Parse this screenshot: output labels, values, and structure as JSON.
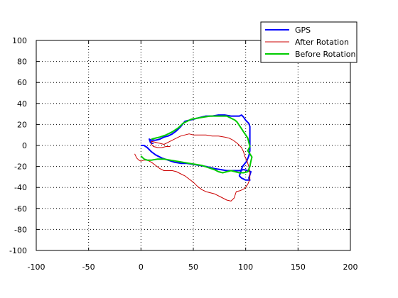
{
  "chart_data": {
    "type": "line",
    "title": "",
    "xlabel": "",
    "ylabel": "",
    "xlim": [
      -100,
      200
    ],
    "ylim": [
      -100,
      100
    ],
    "xticks": [
      -100,
      -50,
      0,
      50,
      100,
      150,
      200
    ],
    "yticks": [
      -100,
      -80,
      -60,
      -40,
      -20,
      0,
      20,
      40,
      60,
      80,
      100
    ],
    "grid": true,
    "legend_position": "top-right",
    "series": [
      {
        "name": "GPS",
        "color": "#0000ff",
        "width": 2,
        "points": [
          [
            0,
            0
          ],
          [
            3,
            0
          ],
          [
            6,
            -2
          ],
          [
            10,
            -6
          ],
          [
            14,
            -9
          ],
          [
            20,
            -12
          ],
          [
            26,
            -14
          ],
          [
            32,
            -16
          ],
          [
            38,
            -17
          ],
          [
            44,
            -17
          ],
          [
            50,
            -18
          ],
          [
            56,
            -19
          ],
          [
            62,
            -20
          ],
          [
            70,
            -22
          ],
          [
            76,
            -23
          ],
          [
            82,
            -24
          ],
          [
            88,
            -24
          ],
          [
            94,
            -24
          ],
          [
            98,
            -23
          ],
          [
            102,
            -24
          ],
          [
            105,
            -25
          ],
          [
            104,
            -28
          ],
          [
            103,
            -31
          ],
          [
            104,
            -33
          ],
          [
            100,
            -33
          ],
          [
            96,
            -31
          ],
          [
            94,
            -29
          ],
          [
            97,
            -20
          ],
          [
            101,
            -15
          ],
          [
            103,
            -10
          ],
          [
            104,
            -5
          ],
          [
            104,
            0
          ],
          [
            104,
            5
          ],
          [
            104,
            10
          ],
          [
            104,
            14
          ],
          [
            104,
            18
          ],
          [
            103,
            21
          ],
          [
            100,
            24
          ],
          [
            98,
            27
          ],
          [
            96,
            29
          ],
          [
            94,
            28
          ],
          [
            90,
            28
          ],
          [
            86,
            28
          ],
          [
            80,
            29
          ],
          [
            74,
            29
          ],
          [
            68,
            28
          ],
          [
            62,
            28
          ],
          [
            58,
            27
          ],
          [
            54,
            26
          ],
          [
            50,
            25
          ],
          [
            46,
            24
          ],
          [
            42,
            23
          ],
          [
            38,
            18
          ],
          [
            34,
            14
          ],
          [
            30,
            11
          ],
          [
            26,
            9
          ],
          [
            22,
            8
          ],
          [
            18,
            6
          ],
          [
            14,
            5
          ],
          [
            10,
            5
          ],
          [
            8,
            6
          ],
          [
            9,
            3
          ],
          [
            10,
            2
          ],
          [
            12,
            2
          ]
        ]
      },
      {
        "name": "After Rotation",
        "color": "#cc0000",
        "width": 1,
        "points": [
          [
            -6,
            -8
          ],
          [
            -4,
            -12
          ],
          [
            -2,
            -14
          ],
          [
            0,
            -15
          ],
          [
            3,
            -14
          ],
          [
            6,
            -14
          ],
          [
            10,
            -16
          ],
          [
            14,
            -19
          ],
          [
            18,
            -22
          ],
          [
            22,
            -24
          ],
          [
            26,
            -24
          ],
          [
            30,
            -24
          ],
          [
            34,
            -25
          ],
          [
            38,
            -27
          ],
          [
            42,
            -29
          ],
          [
            46,
            -32
          ],
          [
            50,
            -35
          ],
          [
            54,
            -39
          ],
          [
            58,
            -42
          ],
          [
            62,
            -44
          ],
          [
            66,
            -45
          ],
          [
            70,
            -46
          ],
          [
            74,
            -48
          ],
          [
            78,
            -50
          ],
          [
            82,
            -52
          ],
          [
            86,
            -53
          ],
          [
            89,
            -50
          ],
          [
            90,
            -47
          ],
          [
            91,
            -44
          ],
          [
            95,
            -43
          ],
          [
            99,
            -41
          ],
          [
            102,
            -37
          ],
          [
            104,
            -32
          ],
          [
            104,
            -25
          ],
          [
            103,
            -20
          ],
          [
            101,
            -14
          ],
          [
            99,
            -10
          ],
          [
            98,
            -6
          ],
          [
            96,
            -2
          ],
          [
            92,
            2
          ],
          [
            88,
            5
          ],
          [
            84,
            7
          ],
          [
            80,
            8
          ],
          [
            74,
            9
          ],
          [
            68,
            9
          ],
          [
            62,
            10
          ],
          [
            56,
            10
          ],
          [
            50,
            10
          ],
          [
            46,
            11
          ],
          [
            42,
            10
          ],
          [
            38,
            9
          ],
          [
            34,
            7
          ],
          [
            30,
            5
          ],
          [
            26,
            3
          ],
          [
            22,
            1
          ],
          [
            18,
            2
          ],
          [
            14,
            3
          ],
          [
            10,
            4
          ],
          [
            10,
            1
          ],
          [
            12,
            -1
          ],
          [
            16,
            -2
          ],
          [
            20,
            -2
          ],
          [
            24,
            -1
          ],
          [
            28,
            -1
          ]
        ]
      },
      {
        "name": "Before Rotation",
        "color": "#00cc00",
        "width": 2,
        "points": [
          [
            0,
            -10
          ],
          [
            3,
            -13
          ],
          [
            6,
            -14
          ],
          [
            10,
            -14
          ],
          [
            16,
            -13
          ],
          [
            22,
            -13
          ],
          [
            28,
            -14
          ],
          [
            34,
            -15
          ],
          [
            40,
            -16
          ],
          [
            46,
            -17
          ],
          [
            52,
            -18
          ],
          [
            58,
            -19
          ],
          [
            64,
            -21
          ],
          [
            70,
            -23
          ],
          [
            74,
            -25
          ],
          [
            78,
            -26
          ],
          [
            82,
            -25
          ],
          [
            86,
            -24
          ],
          [
            90,
            -25
          ],
          [
            94,
            -26
          ],
          [
            98,
            -26
          ],
          [
            102,
            -25
          ],
          [
            104,
            -20
          ],
          [
            105,
            -15
          ],
          [
            106,
            -11
          ],
          [
            104,
            -8
          ],
          [
            102,
            -5
          ],
          [
            104,
            -1
          ],
          [
            103,
            3
          ],
          [
            102,
            7
          ],
          [
            100,
            10
          ],
          [
            98,
            13
          ],
          [
            96,
            16
          ],
          [
            94,
            19
          ],
          [
            92,
            22
          ],
          [
            90,
            24
          ],
          [
            86,
            26
          ],
          [
            82,
            28
          ],
          [
            78,
            28
          ],
          [
            72,
            28
          ],
          [
            66,
            28
          ],
          [
            60,
            27
          ],
          [
            54,
            26
          ],
          [
            48,
            25
          ],
          [
            44,
            23
          ],
          [
            40,
            21
          ],
          [
            36,
            17
          ],
          [
            30,
            13
          ],
          [
            24,
            10
          ],
          [
            18,
            8
          ],
          [
            14,
            7
          ],
          [
            10,
            6
          ]
        ]
      }
    ]
  }
}
